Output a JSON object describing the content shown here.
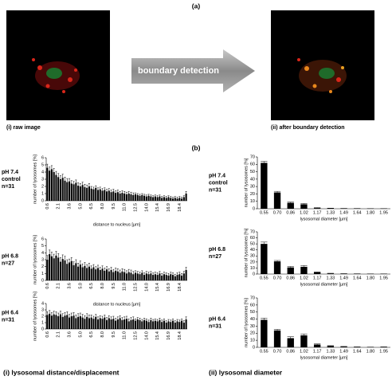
{
  "figure": {
    "panel_a": "(a)",
    "panel_b": "(b)",
    "image_captions": [
      "(i) raw image",
      "(ii) after boundary detection"
    ],
    "arrow_label": "boundary detection",
    "column_captions": [
      "(i) lysosomal distance/displacement",
      "(ii) lysosomal diameter"
    ]
  },
  "chart_data": [
    {
      "type": "bar",
      "condition": [
        "pH 7.4",
        "control",
        "n=31"
      ],
      "y_label": "number of lysosomes [%]",
      "x_label": "distance to nucleus [µm]",
      "color": "#000000",
      "categories": [
        "0.6",
        null,
        null,
        null,
        null,
        "2.1",
        null,
        null,
        null,
        null,
        "3.6",
        null,
        null,
        null,
        null,
        "5.0",
        null,
        null,
        null,
        null,
        "6.5",
        null,
        null,
        null,
        null,
        "8.0",
        null,
        null,
        null,
        null,
        "9.5",
        null,
        null,
        null,
        null,
        "11.0",
        null,
        null,
        null,
        null,
        "12.5",
        null,
        null,
        null,
        null,
        "14.0",
        null,
        null,
        null,
        null,
        "15.4",
        null,
        null,
        null,
        null,
        "16.9",
        null,
        null,
        null,
        null,
        "18.4",
        null,
        null,
        null
      ],
      "values": [
        4.6,
        4.2,
        4.4,
        4.0,
        3.6,
        3.3,
        3.0,
        3.2,
        2.8,
        2.6,
        2.7,
        2.4,
        2.3,
        2.5,
        2.1,
        2.0,
        2.2,
        1.9,
        1.8,
        2.0,
        1.7,
        1.6,
        1.8,
        1.5,
        1.6,
        1.4,
        1.5,
        1.3,
        1.4,
        1.2,
        1.3,
        1.1,
        1.2,
        1.0,
        1.1,
        1.0,
        0.9,
        1.0,
        0.9,
        0.8,
        0.9,
        0.8,
        0.7,
        0.8,
        0.7,
        0.6,
        0.7,
        0.6,
        0.5,
        0.6,
        0.5,
        0.6,
        0.4,
        0.5,
        0.4,
        0.5,
        0.4,
        0.3,
        0.4,
        0.3,
        0.4,
        0.3,
        0.5,
        1.0
      ],
      "errors": [
        0.5,
        0.5,
        0.5,
        0.5,
        0.5,
        0.5,
        0.5,
        0.5,
        0.5,
        0.5,
        0.4,
        0.4,
        0.4,
        0.4,
        0.4,
        0.4,
        0.4,
        0.4,
        0.4,
        0.4,
        0.3,
        0.3,
        0.3,
        0.3,
        0.3,
        0.3,
        0.3,
        0.3,
        0.3,
        0.3,
        0.3,
        0.3,
        0.3,
        0.3,
        0.3,
        0.3,
        0.3,
        0.3,
        0.3,
        0.3,
        0.2,
        0.2,
        0.2,
        0.2,
        0.2,
        0.2,
        0.2,
        0.2,
        0.2,
        0.2,
        0.2,
        0.2,
        0.2,
        0.2,
        0.2,
        0.2,
        0.2,
        0.2,
        0.2,
        0.2,
        0.2,
        0.2,
        0.2,
        0.3
      ],
      "ylim": [
        0,
        6
      ],
      "yticks": [
        0,
        1,
        2,
        3,
        4,
        5,
        6
      ]
    },
    {
      "type": "bar",
      "condition": [
        "pH 6.8",
        "n=27"
      ],
      "y_label": "number of lysosomes [%]",
      "x_label": "distance to nucleus [µm]",
      "color": "#000000",
      "categories": [
        "0.6",
        null,
        null,
        null,
        null,
        "2.1",
        null,
        null,
        null,
        null,
        "3.6",
        null,
        null,
        null,
        null,
        "5.0",
        null,
        null,
        null,
        null,
        "6.5",
        null,
        null,
        null,
        null,
        "8.0",
        null,
        null,
        null,
        null,
        "9.5",
        null,
        null,
        null,
        null,
        "11.0",
        null,
        null,
        null,
        null,
        "12.5",
        null,
        null,
        null,
        null,
        "14.0",
        null,
        null,
        null,
        null,
        "15.4",
        null,
        null,
        null,
        null,
        "16.9",
        null,
        null,
        null,
        null,
        "18.4",
        null,
        null,
        null
      ],
      "values": [
        3.0,
        3.8,
        3.5,
        3.2,
        3.6,
        3.3,
        2.7,
        3.1,
        2.9,
        2.4,
        2.6,
        2.8,
        2.2,
        2.5,
        2.0,
        2.3,
        1.9,
        2.1,
        1.8,
        2.0,
        1.7,
        1.9,
        1.6,
        1.8,
        1.5,
        1.7,
        1.4,
        1.6,
        1.3,
        1.5,
        1.2,
        1.4,
        1.3,
        1.1,
        1.3,
        1.2,
        1.0,
        1.2,
        1.1,
        0.9,
        1.1,
        1.0,
        0.9,
        1.1,
        0.8,
        1.0,
        0.9,
        1.0,
        0.8,
        0.9,
        0.8,
        1.0,
        0.7,
        0.9,
        0.8,
        0.7,
        0.9,
        0.8,
        0.6,
        0.8,
        0.9,
        0.7,
        1.0,
        1.5
      ],
      "errors": [
        0.6,
        0.6,
        0.6,
        0.6,
        0.6,
        0.6,
        0.6,
        0.6,
        0.6,
        0.6,
        0.5,
        0.5,
        0.5,
        0.5,
        0.5,
        0.5,
        0.5,
        0.5,
        0.5,
        0.5,
        0.4,
        0.4,
        0.4,
        0.4,
        0.4,
        0.4,
        0.4,
        0.4,
        0.4,
        0.4,
        0.4,
        0.4,
        0.4,
        0.4,
        0.4,
        0.4,
        0.4,
        0.4,
        0.4,
        0.4,
        0.3,
        0.3,
        0.3,
        0.3,
        0.3,
        0.3,
        0.3,
        0.3,
        0.3,
        0.3,
        0.3,
        0.3,
        0.3,
        0.3,
        0.3,
        0.3,
        0.3,
        0.3,
        0.3,
        0.3,
        0.3,
        0.3,
        0.3,
        0.4
      ],
      "ylim": [
        0,
        6
      ],
      "yticks": [
        0,
        1,
        2,
        3,
        4,
        5,
        6
      ]
    },
    {
      "type": "bar",
      "condition": [
        "pH 6.4",
        "n=31"
      ],
      "y_label": "number of lysosomes [%]",
      "color": "#000000",
      "categories": [
        "0.6",
        null,
        null,
        null,
        null,
        "2.1",
        null,
        null,
        null,
        null,
        "3.6",
        null,
        null,
        null,
        null,
        "5.0",
        null,
        null,
        null,
        null,
        "6.5",
        null,
        null,
        null,
        null,
        "8.0",
        null,
        null,
        null,
        null,
        "9.5",
        null,
        null,
        null,
        null,
        "11.0",
        null,
        null,
        null,
        null,
        "12.5",
        null,
        null,
        null,
        null,
        "14.0",
        null,
        null,
        null,
        null,
        "15.4",
        null,
        null,
        null,
        null,
        "16.9",
        null,
        null,
        null,
        null,
        "18.4",
        null,
        null,
        null
      ],
      "values": [
        2.2,
        2.4,
        2.1,
        2.3,
        2.2,
        2.0,
        2.3,
        1.9,
        2.1,
        2.2,
        1.8,
        2.0,
        2.1,
        1.7,
        1.9,
        2.0,
        1.8,
        1.6,
        1.9,
        1.7,
        1.8,
        1.6,
        1.9,
        1.5,
        1.7,
        1.6,
        1.8,
        1.4,
        1.7,
        1.5,
        1.6,
        1.3,
        1.5,
        1.7,
        1.4,
        1.5,
        1.6,
        1.2,
        1.4,
        1.5,
        1.3,
        1.5,
        1.4,
        1.2,
        1.4,
        1.3,
        1.1,
        1.4,
        1.2,
        1.3,
        1.2,
        1.4,
        1.1,
        1.3,
        1.0,
        1.2,
        1.1,
        1.3,
        1.0,
        1.2,
        1.1,
        1.3,
        1.0,
        1.5
      ],
      "errors": [
        0.5,
        0.5,
        0.5,
        0.5,
        0.5,
        0.5,
        0.5,
        0.5,
        0.5,
        0.5,
        0.5,
        0.5,
        0.5,
        0.5,
        0.5,
        0.5,
        0.5,
        0.5,
        0.5,
        0.5,
        0.4,
        0.4,
        0.4,
        0.4,
        0.4,
        0.4,
        0.4,
        0.4,
        0.4,
        0.4,
        0.4,
        0.4,
        0.4,
        0.4,
        0.4,
        0.4,
        0.4,
        0.4,
        0.4,
        0.4,
        0.3,
        0.3,
        0.3,
        0.3,
        0.3,
        0.3,
        0.3,
        0.3,
        0.3,
        0.3,
        0.3,
        0.3,
        0.3,
        0.3,
        0.3,
        0.3,
        0.3,
        0.3,
        0.3,
        0.3,
        0.3,
        0.3,
        0.3,
        0.4
      ],
      "ylim": [
        0,
        4
      ],
      "yticks": [
        0,
        1,
        2,
        3,
        4
      ]
    },
    {
      "type": "bar",
      "condition": [
        "pH 7.4",
        "control",
        "n=31"
      ],
      "y_label": "number of lysosomes [%]",
      "x_label": "lysosomal diameter [µm]",
      "color": "#000000",
      "categories": [
        "0.55",
        "0.70",
        "0.86",
        "1.02",
        "1.17",
        "1.33",
        "1.49",
        "1.64",
        "1.80",
        "1.95"
      ],
      "values": [
        62,
        22,
        8,
        6,
        1,
        0.5,
        0.3,
        0.2,
        0.1,
        0.1
      ],
      "errors": [
        2,
        1.5,
        1,
        1,
        0.5,
        0.3,
        0.2,
        0.2,
        0.1,
        0.1
      ],
      "ylim": [
        0,
        70
      ],
      "yticks": [
        0,
        10,
        20,
        30,
        40,
        50,
        60,
        70
      ]
    },
    {
      "type": "bar",
      "condition": [
        "pH 6.8",
        "n=27"
      ],
      "y_label": "number of lysosomes [%]",
      "x_label": "lysosomal diameter [µm]",
      "color": "#000000",
      "categories": [
        "0.55",
        "0.70",
        "0.86",
        "1.02",
        "1.17",
        "1.33",
        "1.49",
        "1.64",
        "1.80",
        "1.95"
      ],
      "values": [
        50,
        21,
        11,
        12,
        3,
        1,
        0.5,
        0.3,
        0.2,
        0.2
      ],
      "errors": [
        3,
        1.5,
        1.5,
        2,
        0.5,
        0.3,
        0.2,
        0.2,
        0.1,
        0.1
      ],
      "ylim": [
        0,
        70
      ],
      "yticks": [
        0,
        10,
        20,
        30,
        40,
        50,
        60,
        70
      ]
    },
    {
      "type": "bar",
      "condition": [
        "pH 6.4",
        "n=31"
      ],
      "y_label": "number of lysosomes [%]",
      "x_label": "lysosomal diameter [µm]",
      "color": "#000000",
      "categories": [
        "0.55",
        "0.70",
        "0.86",
        "1.02",
        "1.17",
        "1.33",
        "1.49",
        "1.64",
        "1.80",
        "1.95"
      ],
      "values": [
        39,
        24,
        13,
        17,
        4,
        2,
        1,
        0.5,
        0.3,
        0.5
      ],
      "errors": [
        2.5,
        1.5,
        2,
        2,
        0.8,
        0.4,
        0.3,
        0.2,
        0.1,
        0.2
      ],
      "ylim": [
        0,
        70
      ],
      "yticks": [
        0,
        10,
        20,
        30,
        40,
        50,
        60,
        70
      ]
    }
  ]
}
